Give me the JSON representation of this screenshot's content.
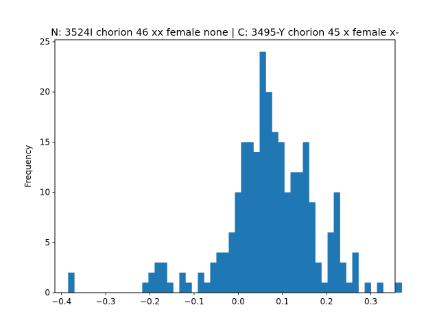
{
  "chart_data": {
    "type": "bar",
    "subtype": "histogram",
    "title": "N: 3524I chorion 46 xx female none | C: 3495-Y chorion 45 x female x-",
    "xlabel": "",
    "ylabel": "Frequency",
    "xlim": [
      -0.415,
      0.355
    ],
    "ylim": [
      0,
      25.2
    ],
    "xticks": [
      -0.4,
      -0.3,
      -0.2,
      -0.1,
      0.0,
      0.1,
      0.2,
      0.3
    ],
    "xtick_labels": [
      "−0.4",
      "−0.3",
      "−0.2",
      "−0.1",
      "0.0",
      "0.1",
      "0.2",
      "0.3"
    ],
    "yticks": [
      0,
      5,
      10,
      15,
      20,
      25
    ],
    "ytick_labels": [
      "0",
      "5",
      "10",
      "15",
      "20",
      "25"
    ],
    "bin_start": -0.385,
    "bin_width": 0.01398,
    "values": [
      2,
      0,
      0,
      0,
      0,
      0,
      0,
      0,
      0,
      0,
      0,
      0,
      1,
      2,
      3,
      3,
      1,
      0,
      2,
      1,
      0,
      2,
      1,
      3,
      4,
      4,
      6,
      10,
      15,
      15,
      14,
      24,
      20,
      16,
      15,
      10,
      12,
      12,
      15,
      9,
      3,
      1,
      6,
      10,
      3,
      1,
      4,
      0,
      1,
      0,
      1,
      0,
      0,
      1
    ],
    "color": "#1f77b4",
    "grid": false,
    "legend": "none"
  }
}
